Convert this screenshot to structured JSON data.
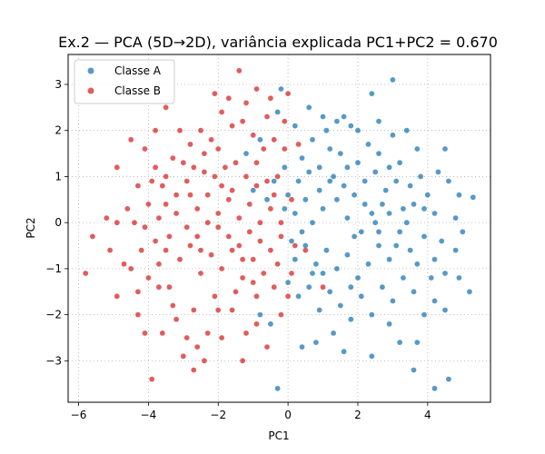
{
  "chart_data": {
    "type": "scatter",
    "title": "Ex.2 — PCA (5D→2D), variância explicada PC1+PC2 = 0.670",
    "xlabel": "PC1",
    "ylabel": "PC2",
    "xlim": [
      -6.3,
      5.8
    ],
    "ylim": [
      -3.9,
      3.65
    ],
    "xticks": [
      -6,
      -4,
      -2,
      0,
      2,
      4
    ],
    "yticks": [
      -3,
      -2,
      -1,
      0,
      1,
      2,
      3
    ],
    "xtick_labels": [
      "−6",
      "−4",
      "−2",
      "0",
      "2",
      "4"
    ],
    "ytick_labels": [
      "−3",
      "−2",
      "−1",
      "0",
      "1",
      "2",
      "3"
    ],
    "grid": true,
    "legend_position": "upper-left",
    "series": [
      {
        "name": "Classe A",
        "color": "#1f77b4",
        "points": [
          [
            3.0,
            3.1
          ],
          [
            2.4,
            2.8
          ],
          [
            1.4,
            2.2
          ],
          [
            1.8,
            2.1
          ],
          [
            0.6,
            2.5
          ],
          [
            -0.3,
            2.4
          ],
          [
            -0.2,
            2.9
          ],
          [
            0.2,
            2.1
          ],
          [
            0.7,
            1.8
          ],
          [
            1.2,
            1.6
          ],
          [
            2.6,
            1.5
          ],
          [
            3.2,
            1.3
          ],
          [
            4.5,
            1.6
          ],
          [
            4.6,
            0.9
          ],
          [
            5.3,
            0.55
          ],
          [
            4.9,
            0.6
          ],
          [
            4.0,
            0.6
          ],
          [
            3.6,
            0.4
          ],
          [
            3.3,
            0.3
          ],
          [
            2.9,
            0.2
          ],
          [
            2.5,
            0.0
          ],
          [
            2.1,
            -0.2
          ],
          [
            1.7,
            0.1
          ],
          [
            1.4,
            0.5
          ],
          [
            1.0,
            0.3
          ],
          [
            0.7,
            0.0
          ],
          [
            0.4,
            -0.2
          ],
          [
            0.2,
            0.2
          ],
          [
            0.0,
            0.6
          ],
          [
            0.3,
            0.9
          ],
          [
            0.6,
            1.1
          ],
          [
            0.9,
            1.2
          ],
          [
            1.3,
            1.0
          ],
          [
            1.6,
            0.8
          ],
          [
            1.9,
            0.6
          ],
          [
            2.2,
            0.9
          ],
          [
            2.5,
            1.1
          ],
          [
            2.8,
            0.7
          ],
          [
            3.1,
            0.9
          ],
          [
            3.5,
            0.8
          ],
          [
            3.8,
            1.0
          ],
          [
            4.2,
            0.2
          ],
          [
            4.4,
            -0.4
          ],
          [
            4.8,
            -0.6
          ],
          [
            4.5,
            -1.1
          ],
          [
            4.2,
            -0.8
          ],
          [
            3.9,
            -0.3
          ],
          [
            3.5,
            -0.6
          ],
          [
            3.2,
            -0.2
          ],
          [
            2.9,
            -0.8
          ],
          [
            2.6,
            -0.5
          ],
          [
            2.3,
            -0.9
          ],
          [
            2.0,
            -1.2
          ],
          [
            1.7,
            -0.7
          ],
          [
            1.4,
            -1.0
          ],
          [
            1.1,
            -0.6
          ],
          [
            0.8,
            -0.9
          ],
          [
            0.5,
            -0.5
          ],
          [
            0.2,
            -0.8
          ],
          [
            0.0,
            -1.3
          ],
          [
            0.3,
            -1.6
          ],
          [
            0.6,
            -1.4
          ],
          [
            0.9,
            -1.9
          ],
          [
            1.2,
            -1.5
          ],
          [
            1.5,
            -1.8
          ],
          [
            1.8,
            -2.1
          ],
          [
            2.1,
            -1.6
          ],
          [
            2.4,
            -2.0
          ],
          [
            2.7,
            -1.4
          ],
          [
            3.0,
            -1.7
          ],
          [
            3.3,
            -1.2
          ],
          [
            3.6,
            -1.5
          ],
          [
            3.9,
            -2.0
          ],
          [
            4.2,
            -1.7
          ],
          [
            4.5,
            -1.9
          ],
          [
            5.2,
            -1.5
          ],
          [
            4.9,
            -1.2
          ],
          [
            3.7,
            -2.6
          ],
          [
            3.2,
            -2.6
          ],
          [
            2.4,
            -2.9
          ],
          [
            1.6,
            -2.8
          ],
          [
            0.8,
            -2.6
          ],
          [
            0.4,
            -2.7
          ],
          [
            -0.5,
            -2.2
          ],
          [
            -0.8,
            -2.0
          ],
          [
            -0.3,
            -3.6
          ],
          [
            4.6,
            -3.4
          ],
          [
            4.2,
            -3.6
          ],
          [
            3.6,
            -3.2
          ],
          [
            2.9,
            -2.2
          ],
          [
            1.3,
            -2.4
          ],
          [
            1.0,
            -1.1
          ],
          [
            1.9,
            -0.3
          ],
          [
            2.2,
            0.4
          ],
          [
            2.7,
            0.4
          ],
          [
            3.4,
            0.0
          ],
          [
            3.7,
            -0.9
          ],
          [
            4.1,
            -1.2
          ],
          [
            1.5,
            1.5
          ],
          [
            2.0,
            1.3
          ],
          [
            2.3,
            1.7
          ],
          [
            2.9,
            1.2
          ],
          [
            1.1,
            2.0
          ],
          [
            0.4,
            1.4
          ],
          [
            -0.1,
            1.2
          ],
          [
            -0.4,
            0.9
          ],
          [
            -0.1,
            0.3
          ],
          [
            0.5,
            0.5
          ],
          [
            0.9,
            0.7
          ],
          [
            1.2,
            0.9
          ],
          [
            1.7,
            1.2
          ],
          [
            2.4,
            0.2
          ],
          [
            2.6,
            -0.2
          ],
          [
            3.1,
            -0.5
          ],
          [
            1.8,
            -1.4
          ],
          [
            0.7,
            -1.1
          ],
          [
            0.1,
            -0.4
          ],
          [
            -0.6,
            0.5
          ],
          [
            -0.8,
            1.8
          ],
          [
            -1.2,
            1.5
          ],
          [
            -1.0,
            0.7
          ],
          [
            4.8,
            0.1
          ],
          [
            5.0,
            -0.2
          ],
          [
            3.9,
            0.3
          ],
          [
            4.3,
            1.1
          ],
          [
            3.0,
            1.9
          ],
          [
            2.0,
            2.0
          ],
          [
            1.6,
            2.3
          ],
          [
            1.0,
            2.3
          ],
          [
            2.6,
            2.2
          ],
          [
            3.4,
            2.0
          ],
          [
            3.7,
            1.6
          ]
        ]
      },
      {
        "name": "Classe B",
        "color": "#d62728",
        "points": [
          [
            -5.8,
            -1.1
          ],
          [
            -5.6,
            -0.3
          ],
          [
            -5.1,
            -0.6
          ],
          [
            -4.9,
            0.0
          ],
          [
            -4.9,
            -1.6
          ],
          [
            -4.7,
            -0.9
          ],
          [
            -4.5,
            -1.0
          ],
          [
            -4.3,
            -1.5
          ],
          [
            -4.1,
            -2.4
          ],
          [
            -3.9,
            -3.4
          ],
          [
            -4.3,
            -2.0
          ],
          [
            -4.0,
            -1.2
          ],
          [
            -3.7,
            -0.9
          ],
          [
            -3.4,
            -1.4
          ],
          [
            -3.2,
            -2.1
          ],
          [
            -2.9,
            -2.5
          ],
          [
            -2.7,
            -3.2
          ],
          [
            -2.6,
            -2.7
          ],
          [
            -2.3,
            -2.4
          ],
          [
            -1.9,
            -2.5
          ],
          [
            -1.6,
            -1.9
          ],
          [
            -1.2,
            -2.4
          ],
          [
            -0.9,
            -2.2
          ],
          [
            -0.6,
            -2.7
          ],
          [
            -0.4,
            -1.4
          ],
          [
            -0.7,
            -1.1
          ],
          [
            -1.0,
            -0.8
          ],
          [
            -1.3,
            -1.2
          ],
          [
            -1.6,
            -0.6
          ],
          [
            -1.9,
            -1.0
          ],
          [
            -2.2,
            -0.7
          ],
          [
            -2.5,
            -1.1
          ],
          [
            -2.8,
            -0.5
          ],
          [
            -3.1,
            -0.8
          ],
          [
            -3.4,
            -0.3
          ],
          [
            -3.7,
            0.1
          ],
          [
            -4.0,
            0.4
          ],
          [
            -4.3,
            0.8
          ],
          [
            -4.6,
            0.3
          ],
          [
            -4.9,
            1.2
          ],
          [
            -4.1,
            1.6
          ],
          [
            -3.8,
            1.2
          ],
          [
            -3.5,
            1.0
          ],
          [
            -3.2,
            0.6
          ],
          [
            -2.9,
            0.9
          ],
          [
            -2.6,
            0.3
          ],
          [
            -2.3,
            0.6
          ],
          [
            -2.0,
            0.2
          ],
          [
            -1.7,
            0.5
          ],
          [
            -1.4,
            0.1
          ],
          [
            -1.1,
            0.4
          ],
          [
            -0.8,
            0.0
          ],
          [
            -0.5,
            0.3
          ],
          [
            -0.2,
            -0.3
          ],
          [
            -0.5,
            -0.6
          ],
          [
            -0.8,
            -0.4
          ],
          [
            -1.1,
            -0.2
          ],
          [
            -1.4,
            -0.5
          ],
          [
            -1.7,
            -0.3
          ],
          [
            -2.0,
            -0.1
          ],
          [
            -2.3,
            0.0
          ],
          [
            -2.6,
            -0.3
          ],
          [
            -2.9,
            -0.1
          ],
          [
            -3.2,
            0.2
          ],
          [
            -3.5,
            0.4
          ],
          [
            -3.8,
            -0.4
          ],
          [
            -4.1,
            -0.1
          ],
          [
            -3.3,
            1.4
          ],
          [
            -3.0,
            1.3
          ],
          [
            -2.7,
            1.2
          ],
          [
            -2.4,
            1.1
          ],
          [
            -2.1,
            1.0
          ],
          [
            -1.8,
            1.2
          ],
          [
            -1.5,
            1.3
          ],
          [
            -1.2,
            1.0
          ],
          [
            -0.9,
            0.8
          ],
          [
            -0.6,
            0.9
          ],
          [
            -0.3,
            1.0
          ],
          [
            -0.1,
            1.6
          ],
          [
            -0.4,
            1.8
          ],
          [
            -0.7,
            1.6
          ],
          [
            -1.0,
            1.9
          ],
          [
            -1.3,
            2.2
          ],
          [
            -1.6,
            2.1
          ],
          [
            -1.9,
            2.4
          ],
          [
            -2.2,
            1.8
          ],
          [
            -2.5,
            2.0
          ],
          [
            -2.8,
            1.7
          ],
          [
            -3.1,
            2.0
          ],
          [
            -3.5,
            2.5
          ],
          [
            -3.8,
            2.0
          ],
          [
            -2.1,
            2.8
          ],
          [
            -1.4,
            3.3
          ],
          [
            -1.2,
            2.6
          ],
          [
            -0.5,
            2.7
          ],
          [
            0.0,
            2.8
          ],
          [
            0.3,
            1.7
          ],
          [
            0.1,
            0.5
          ],
          [
            0.2,
            -0.5
          ],
          [
            0.1,
            -1.1
          ],
          [
            0.0,
            -1.6
          ],
          [
            -0.3,
            -0.9
          ],
          [
            -0.2,
            -2.0
          ],
          [
            -0.9,
            -1.6
          ],
          [
            -1.5,
            -1.5
          ],
          [
            -2.1,
            -1.6
          ],
          [
            -2.7,
            -1.9
          ],
          [
            -3.3,
            -1.8
          ],
          [
            -3.6,
            -2.4
          ],
          [
            -3.0,
            -2.9
          ],
          [
            -2.4,
            -3.0
          ],
          [
            -1.3,
            -3.0
          ],
          [
            -1.9,
            0.8
          ],
          [
            -2.4,
            1.5
          ],
          [
            -3.6,
            0.8
          ],
          [
            -4.4,
            0.0
          ],
          [
            -5.2,
            0.1
          ],
          [
            -4.2,
            -0.6
          ],
          [
            -3.5,
            -0.6
          ],
          [
            -1.0,
            -1.3
          ],
          [
            -2.0,
            -1.9
          ],
          [
            -0.4,
            0.6
          ],
          [
            -0.9,
            1.3
          ],
          [
            -1.6,
            0.7
          ],
          [
            -2.8,
            0.6
          ],
          [
            -3.9,
            0.9
          ],
          [
            -4.5,
            1.8
          ],
          [
            -0.6,
            2.3
          ],
          [
            0.5,
            -0.6
          ],
          [
            1.0,
            -1.4
          ],
          [
            -0.2,
            0.0
          ],
          [
            -1.3,
            -0.8
          ],
          [
            -2.5,
            -0.6
          ],
          [
            -3.7,
            -1.4
          ],
          [
            -1.7,
            2.7
          ],
          [
            -2.0,
            1.6
          ],
          [
            -0.9,
            2.9
          ],
          [
            -0.1,
            2.2
          ]
        ]
      }
    ]
  }
}
